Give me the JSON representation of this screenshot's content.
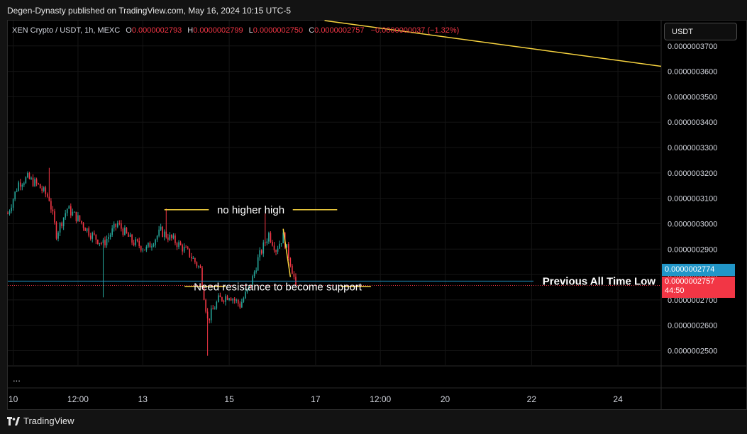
{
  "publisher_line": "Degen-Dynasty published on TradingView.com, May 16, 2024 10:15 UTC-5",
  "legend": {
    "symbol": "XEN Crypto / USDT, 1h, MEXC",
    "open_label": "O",
    "open": "0.0000002793",
    "high_label": "H",
    "high": "0.0000002799",
    "low_label": "L",
    "low": "0.0000002750",
    "close_label": "C",
    "close": "0.0000002757",
    "change": "−0.0000000037 (−1.32%)"
  },
  "currency_button": "USDT",
  "more_label": "...",
  "brand": "TradingView",
  "price_tags": {
    "line_price": "0.0000002774",
    "last_price": "0.0000002757",
    "countdown": "44:50"
  },
  "colors": {
    "up": "#26a69a",
    "down": "#f23645",
    "annotation": "#f7d33f",
    "level_line": "#2196c8",
    "background": "#000000"
  },
  "chart_data": {
    "type": "candlestick",
    "title": "",
    "y_axis": {
      "min": 2.44e-07,
      "max": 3.8e-07,
      "ticks": [
        "0.0000003700",
        "0.0000003600",
        "0.0000003500",
        "0.0000003400",
        "0.0000003300",
        "0.0000003200",
        "0.0000003100",
        "0.0000003000",
        "0.0000002900",
        "0.0000002800",
        "0.0000002700",
        "0.0000002600",
        "0.0000002500"
      ]
    },
    "x_axis": {
      "start": "2024-05-09T21:00",
      "end": "2024-05-25T00:00",
      "ticks": [
        {
          "label": "10",
          "t": "2024-05-10T00:00"
        },
        {
          "label": "12:00",
          "t": "2024-05-11T12:00"
        },
        {
          "label": "13",
          "t": "2024-05-13T00:00"
        },
        {
          "label": "15",
          "t": "2024-05-15T00:00"
        },
        {
          "label": "17",
          "t": "2024-05-17T00:00"
        },
        {
          "label": "12:00",
          "t": "2024-05-18T12:00"
        },
        {
          "label": "20",
          "t": "2024-05-20T00:00"
        },
        {
          "label": "22",
          "t": "2024-05-22T00:00"
        },
        {
          "label": "24",
          "t": "2024-05-24T00:00"
        }
      ]
    },
    "price_path": [
      {
        "t": "2024-05-09T21:00",
        "p": 3.04e-07
      },
      {
        "t": "2024-05-10T03:00",
        "p": 3.16e-07
      },
      {
        "t": "2024-05-10T08:00",
        "p": 3.18e-07
      },
      {
        "t": "2024-05-10T14:00",
        "p": 3.15e-07
      },
      {
        "t": "2024-05-10T20:00",
        "p": 3.1e-07
      },
      {
        "t": "2024-05-11T00:00",
        "p": 2.96e-07
      },
      {
        "t": "2024-05-11T06:00",
        "p": 3.06e-07
      },
      {
        "t": "2024-05-11T12:00",
        "p": 3.02e-07
      },
      {
        "t": "2024-05-11T19:00",
        "p": 2.96e-07
      },
      {
        "t": "2024-05-12T02:00",
        "p": 2.92e-07
      },
      {
        "t": "2024-05-12T10:00",
        "p": 3e-07
      },
      {
        "t": "2024-05-12T18:00",
        "p": 2.93e-07
      },
      {
        "t": "2024-05-13T02:00",
        "p": 2.9e-07
      },
      {
        "t": "2024-05-13T10:00",
        "p": 2.97e-07
      },
      {
        "t": "2024-05-13T18:00",
        "p": 2.93e-07
      },
      {
        "t": "2024-05-14T02:00",
        "p": 2.88e-07
      },
      {
        "t": "2024-05-14T08:00",
        "p": 2.82e-07
      },
      {
        "t": "2024-05-14T12:00",
        "p": 2.62e-07
      },
      {
        "t": "2024-05-14T18:00",
        "p": 2.7e-07
      },
      {
        "t": "2024-05-15T00:00",
        "p": 2.72e-07
      },
      {
        "t": "2024-05-15T06:00",
        "p": 2.68e-07
      },
      {
        "t": "2024-05-15T12:00",
        "p": 2.76e-07
      },
      {
        "t": "2024-05-15T16:00",
        "p": 2.86e-07
      },
      {
        "t": "2024-05-15T22:00",
        "p": 2.96e-07
      },
      {
        "t": "2024-05-16T02:00",
        "p": 2.9e-07
      },
      {
        "t": "2024-05-16T06:00",
        "p": 2.95e-07
      },
      {
        "t": "2024-05-16T10:00",
        "p": 2.85e-07
      },
      {
        "t": "2024-05-16T13:00",
        "p": 2.757e-07
      }
    ],
    "wick_extremes": [
      {
        "t": "2024-05-10T20:00",
        "p": 3.22e-07
      },
      {
        "t": "2024-05-11T22:00",
        "p": 2.92e-07
      },
      {
        "t": "2024-05-12T02:00",
        "p": 2.71e-07
      },
      {
        "t": "2024-05-13T13:00",
        "p": 3.06e-07
      },
      {
        "t": "2024-05-14T12:00",
        "p": 2.48e-07
      },
      {
        "t": "2024-05-15T20:00",
        "p": 3.04e-07
      }
    ],
    "horizontal_lines": [
      {
        "name": "Previous All Time Low",
        "price": 2.774e-07
      }
    ],
    "annotations": [
      {
        "text": "no higher high",
        "price": 3.055e-07,
        "t_start": "2024-05-13T12:00",
        "t_end": "2024-05-17T12:00",
        "t_text": "2024-05-15T12:00"
      },
      {
        "text": "Need resistance to become support",
        "price": 2.752e-07,
        "t_start": "2024-05-14T22:00",
        "t_end": "2024-05-17T14:00",
        "t_text": "2024-05-16T03:00"
      },
      {
        "text": "Previous All Time Low",
        "price": 2.774e-07,
        "t_text": "2024-05-22T12:00"
      }
    ],
    "trend_lines": [
      {
        "from": {
          "t": "2024-05-17T05:00",
          "p": 3.8e-07
        },
        "to": {
          "t": "2024-05-25T00:00",
          "p": 3.62e-07
        }
      },
      {
        "from": {
          "t": "2024-05-16T06:00",
          "p": 2.98e-07
        },
        "to": {
          "t": "2024-05-16T10:00",
          "p": 2.79e-07
        }
      }
    ],
    "last_price_line": 2.757e-07,
    "grid": true,
    "legend_position": "top-left"
  }
}
